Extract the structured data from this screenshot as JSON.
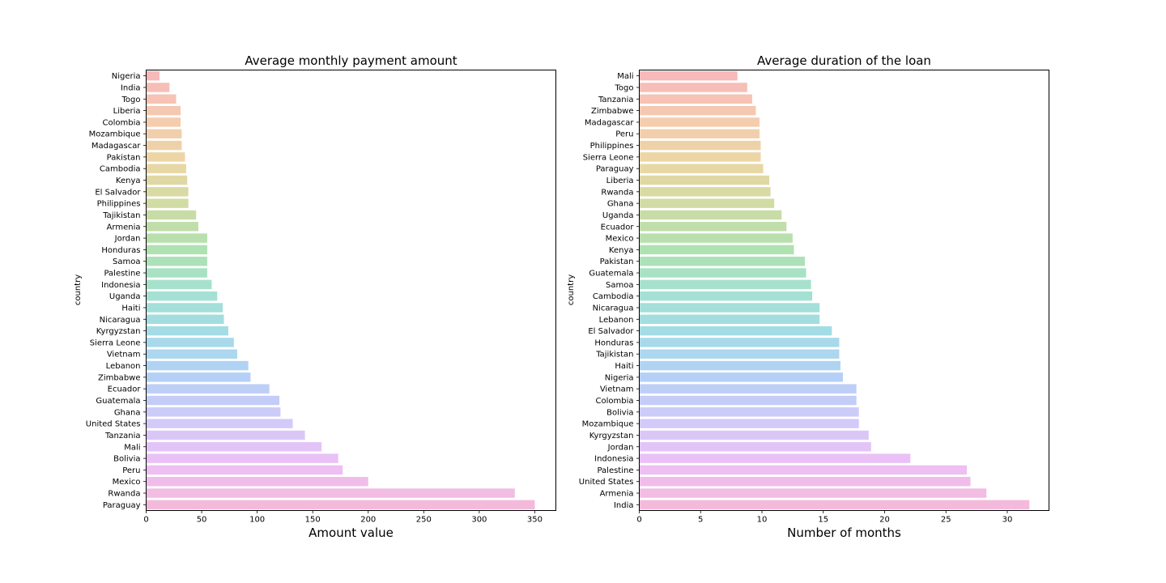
{
  "chart_data": [
    {
      "type": "bar",
      "orientation": "horizontal",
      "title": "Average monthly payment amount",
      "xlabel": "Amount value",
      "ylabel": "country",
      "xlim": [
        0,
        369
      ],
      "xticks": [
        0,
        50,
        100,
        150,
        200,
        250,
        300,
        350
      ],
      "grid": false,
      "categories": [
        "Nigeria",
        "India",
        "Togo",
        "Liberia",
        "Colombia",
        "Mozambique",
        "Madagascar",
        "Pakistan",
        "Cambodia",
        "Kenya",
        "El Salvador",
        "Philippines",
        "Tajikistan",
        "Armenia",
        "Jordan",
        "Honduras",
        "Samoa",
        "Palestine",
        "Indonesia",
        "Uganda",
        "Haiti",
        "Nicaragua",
        "Kyrgyzstan",
        "Sierra Leone",
        "Vietnam",
        "Lebanon",
        "Zimbabwe",
        "Ecuador",
        "Guatemala",
        "Ghana",
        "United States",
        "Tanzania",
        "Mali",
        "Bolivia",
        "Peru",
        "Mexico",
        "Rwanda",
        "Paraguay"
      ],
      "values": [
        12,
        21,
        27,
        31,
        31,
        32,
        32,
        35,
        36,
        37,
        38,
        38,
        45,
        47,
        55,
        55,
        55,
        55,
        59,
        64,
        69,
        70,
        74,
        79,
        82,
        92,
        94,
        111,
        120,
        121,
        132,
        143,
        158,
        173,
        177,
        200,
        332,
        350
      ]
    },
    {
      "type": "bar",
      "orientation": "horizontal",
      "title": "Average duration of the loan",
      "xlabel": "Number of months",
      "ylabel": "country",
      "xlim": [
        0,
        33.4
      ],
      "xticks": [
        0,
        5,
        10,
        15,
        20,
        25,
        30
      ],
      "grid": false,
      "categories": [
        "Mali",
        "Togo",
        "Tanzania",
        "Zimbabwe",
        "Madagascar",
        "Peru",
        "Philippines",
        "Sierra Leone",
        "Paraguay",
        "Liberia",
        "Rwanda",
        "Ghana",
        "Uganda",
        "Ecuador",
        "Mexico",
        "Kenya",
        "Pakistan",
        "Guatemala",
        "Samoa",
        "Cambodia",
        "Nicaragua",
        "Lebanon",
        "El Salvador",
        "Honduras",
        "Tajikistan",
        "Haiti",
        "Nigeria",
        "Vietnam",
        "Colombia",
        "Bolivia",
        "Mozambique",
        "Kyrgyzstan",
        "Jordan",
        "Indonesia",
        "Palestine",
        "United States",
        "Armenia",
        "India"
      ],
      "values": [
        8.0,
        8.8,
        9.2,
        9.5,
        9.8,
        9.8,
        9.9,
        9.9,
        10.1,
        10.6,
        10.7,
        11.0,
        11.6,
        12.0,
        12.5,
        12.6,
        13.5,
        13.6,
        14.0,
        14.1,
        14.7,
        14.7,
        15.7,
        16.3,
        16.3,
        16.4,
        16.6,
        17.7,
        17.7,
        17.9,
        17.9,
        18.7,
        18.9,
        22.1,
        26.7,
        27.0,
        28.3,
        31.8
      ]
    }
  ]
}
